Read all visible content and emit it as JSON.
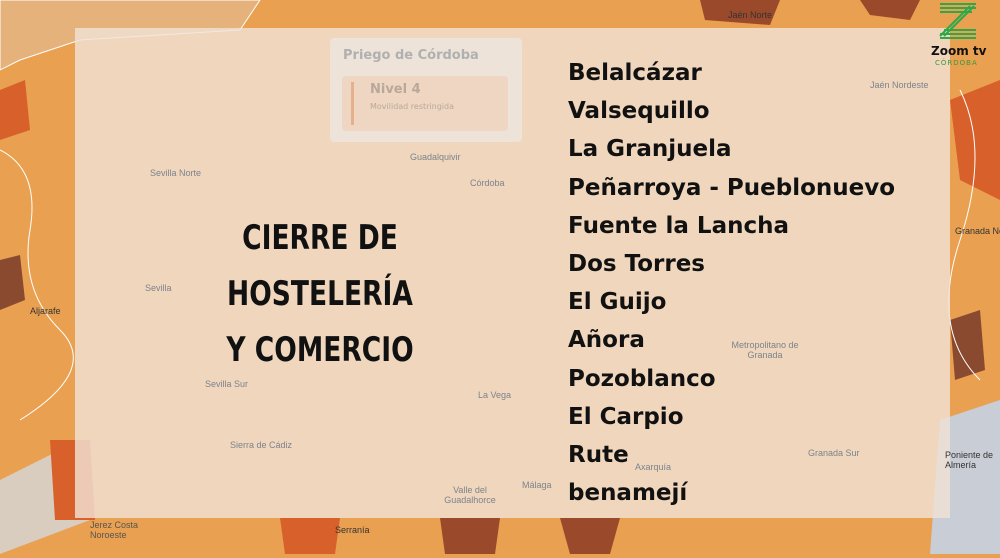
{
  "map": {
    "labels": [
      "Jaén Norte",
      "Jaén Nordeste",
      "Guadalquivir",
      "Córdoba",
      "Sevilla Norte",
      "Sevilla",
      "Sevilla Sur",
      "Aljarafe",
      "La Vega",
      "Sierra de Cádiz",
      "Valle del Guadalhorce",
      "Metropolitano de Granada",
      "Granada Norte",
      "Granada Sur",
      "Axarquía",
      "Málaga",
      "Serranía",
      "Jerez Costa Noroeste",
      "Poniente de Almería"
    ],
    "colors": {
      "base": "#e9a050",
      "dark": "#9a4a2a",
      "red": "#d8602a"
    }
  },
  "tooltip": {
    "title": "Priego de Córdoba",
    "level": "Nivel 4",
    "subtitle": "Movilidad restringida"
  },
  "headline": {
    "line1": "CIERRE DE HOSTELERÍA",
    "line2": "Y COMERCIO"
  },
  "municipalities": [
    "Belalcázar",
    "Valsequillo",
    "La Granjuela",
    "Peñarroya - Pueblonuevo",
    "Fuente la Lancha",
    "Dos Torres",
    "El Guijo",
    "Añora",
    "Pozoblanco",
    "El Carpio",
    "Rute",
    "benamejí"
  ],
  "logo": {
    "name": "Zoom tv",
    "region": "CÓRDOBA",
    "color": "#2fa84a"
  }
}
